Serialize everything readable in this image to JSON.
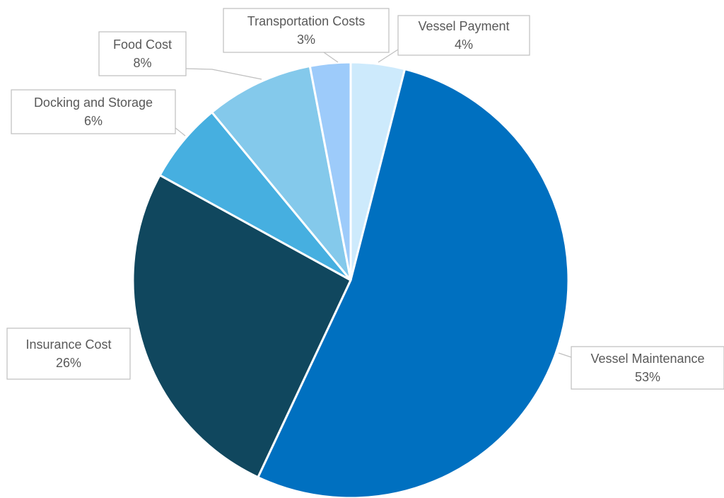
{
  "chart_data": {
    "type": "pie",
    "categories": [
      "Vessel Payment",
      "Vessel Maintenance",
      "Insurance Cost",
      "Docking and Storage",
      "Food Cost",
      "Transportation Costs"
    ],
    "values": [
      4,
      53,
      26,
      6,
      8,
      3
    ],
    "value_labels": [
      "4%",
      "53%",
      "26%",
      "6%",
      "8%",
      "3%"
    ],
    "colors": [
      "#cdeafc",
      "#0070c0",
      "#10475e",
      "#46afe0",
      "#84c9eb",
      "#9dcbfa"
    ]
  }
}
